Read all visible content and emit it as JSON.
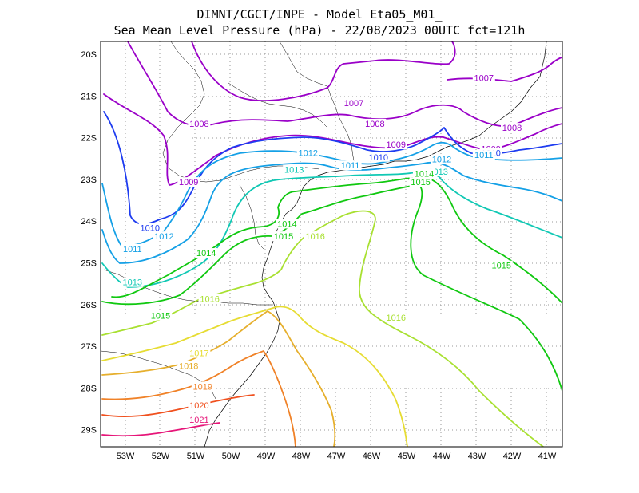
{
  "title": {
    "line1": "DIMNT/CGCT/INPE -  Model Eta05_M01_",
    "line2": "Sea Mean Level Pressure (hPa) - 22/08/2023 00UTC fct=121h"
  },
  "map": {
    "lon_range": [
      -53.6,
      -40.5
    ],
    "lat_range": [
      -29.4,
      -19.7
    ],
    "x_ticks": [
      "53W",
      "52W",
      "51W",
      "50W",
      "49W",
      "48W",
      "47W",
      "46W",
      "45W",
      "44W",
      "43W",
      "42W",
      "41W"
    ],
    "y_ticks": [
      "20S",
      "21S",
      "22S",
      "23S",
      "24S",
      "25S",
      "26S",
      "27S",
      "28S",
      "29S"
    ]
  },
  "isobars": [
    {
      "level": "1007",
      "color": "#9a00c8",
      "labels": [
        [
          "1007",
          -46.5,
          -21.2
        ],
        [
          "1007",
          -42.8,
          -20.6
        ]
      ]
    },
    {
      "level": "1008",
      "color": "#9a00c8",
      "labels": [
        [
          "1008",
          -50.9,
          -21.7
        ],
        [
          "1008",
          -45.9,
          -21.7
        ],
        [
          "1008",
          -42.0,
          -21.8
        ]
      ]
    },
    {
      "level": "1009",
      "color": "#9a00c8",
      "labels": [
        [
          "1009",
          -51.2,
          -23.1
        ],
        [
          "1009",
          -45.3,
          -22.2
        ],
        [
          "1009",
          -42.6,
          -22.3
        ]
      ]
    },
    {
      "level": "1010",
      "color": "#1e3cf0",
      "labels": [
        [
          "1010",
          -52.3,
          -24.2
        ],
        [
          "1010",
          -45.8,
          -22.5
        ],
        [
          "1010",
          -42.6,
          -22.4
        ]
      ]
    },
    {
      "level": "1011",
      "color": "#14a0e6",
      "labels": [
        [
          "1011",
          -52.8,
          -24.7
        ],
        [
          "1011",
          -46.6,
          -22.7
        ],
        [
          "1011",
          -42.8,
          -22.45
        ]
      ]
    },
    {
      "level": "1012",
      "color": "#14a0e6",
      "labels": [
        [
          "1012",
          -51.9,
          -24.4
        ],
        [
          "1012",
          -47.8,
          -22.4
        ],
        [
          "1012",
          -44.0,
          -22.55
        ]
      ]
    },
    {
      "level": "1013",
      "color": "#10c8b4",
      "labels": [
        [
          "1013",
          -52.8,
          -25.5
        ],
        [
          "1013",
          -48.2,
          -22.8
        ],
        [
          "1013",
          -44.1,
          -22.85
        ]
      ]
    },
    {
      "level": "1014",
      "color": "#10c810",
      "labels": [
        [
          "1014",
          -50.7,
          -24.8
        ],
        [
          "1014",
          -48.4,
          -24.1
        ],
        [
          "1014",
          -44.5,
          -22.9
        ]
      ]
    },
    {
      "level": "1015",
      "color": "#10c810",
      "labels": [
        [
          "1015",
          -52.0,
          -26.3
        ],
        [
          "1015",
          -48.5,
          -24.4
        ],
        [
          "1015",
          -44.6,
          -23.1
        ],
        [
          "1015",
          -42.3,
          -25.1
        ]
      ]
    },
    {
      "level": "1016",
      "color": "#a8e030",
      "labels": [
        [
          "1016",
          -50.6,
          -25.9
        ],
        [
          "1016",
          -47.6,
          -24.4
        ],
        [
          "1016",
          -45.3,
          -26.35
        ]
      ]
    },
    {
      "level": "1017",
      "color": "#e6dc32",
      "labels": [
        [
          "1017",
          -50.9,
          -27.2
        ]
      ]
    },
    {
      "level": "1018",
      "color": "#e6af2d",
      "labels": [
        [
          "1018",
          -51.2,
          -27.5
        ]
      ]
    },
    {
      "level": "1019",
      "color": "#f08228",
      "labels": [
        [
          "1019",
          -50.8,
          -28.0
        ]
      ]
    },
    {
      "level": "1020",
      "color": "#f0501e",
      "labels": [
        [
          "1020",
          -50.9,
          -28.45
        ]
      ]
    },
    {
      "level": "1021",
      "color": "#e61478",
      "labels": [
        [
          "1021",
          -50.9,
          -28.8
        ]
      ]
    }
  ]
}
